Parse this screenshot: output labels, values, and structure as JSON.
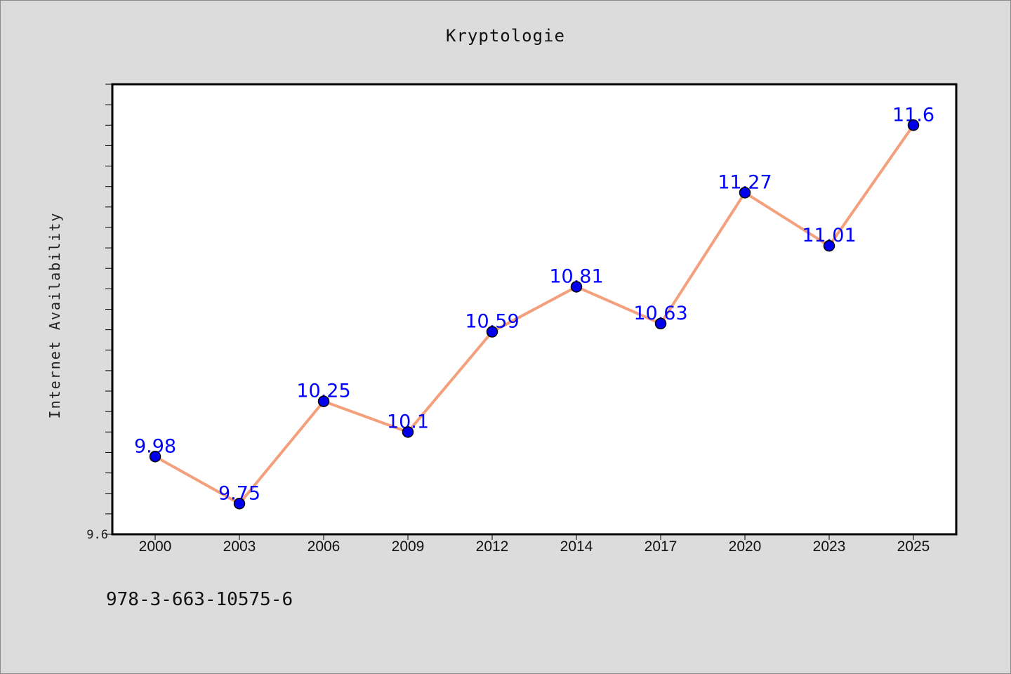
{
  "chart_data": {
    "type": "line",
    "title": "Kryptologie",
    "xlabel": "",
    "ylabel": "Internet Availability",
    "categories": [
      "2000",
      "2003",
      "2006",
      "2009",
      "2012",
      "2014",
      "2017",
      "2020",
      "2023",
      "2025"
    ],
    "values": [
      9.98,
      9.75,
      10.25,
      10.1,
      10.59,
      10.81,
      10.63,
      11.27,
      11.01,
      11.6
    ],
    "value_labels": [
      "9.98",
      "9.75",
      "10.25",
      "10.1",
      "10.59",
      "10.81",
      "10.63",
      "11.27",
      "11.01",
      "11.6"
    ],
    "ytick_label": "9.6",
    "ylim": [
      9.6,
      11.8
    ],
    "grid": false,
    "colors": {
      "line": "#f4a07c",
      "marker": "#0000ee",
      "label": "#0000ff",
      "frame": "#000000"
    }
  },
  "footer_text": "978-3-663-10575-6"
}
